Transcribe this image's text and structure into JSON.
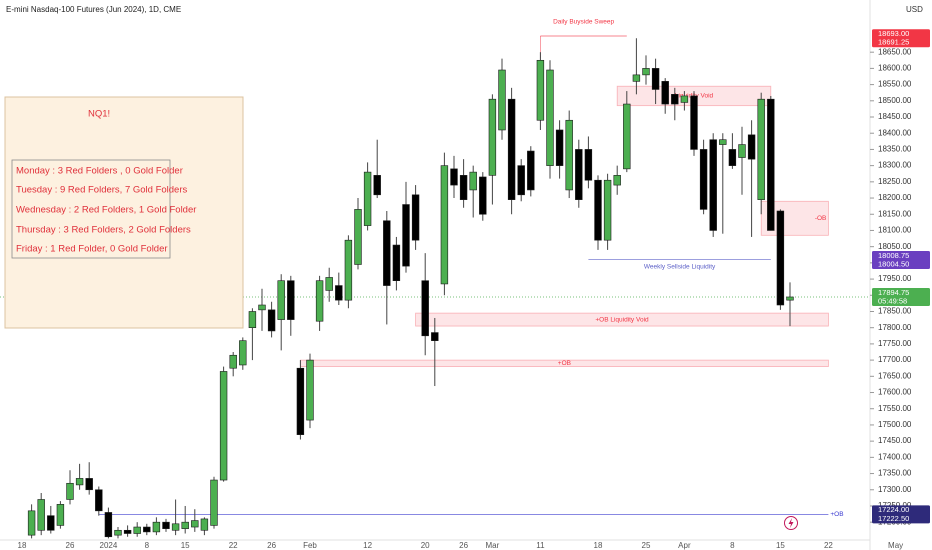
{
  "chart_data": {
    "type": "candlestick",
    "title": "E-mini Nasdaq-100 Futures (Jun 2024), 1D, CME",
    "currency": "USD",
    "categories": [
      "18",
      null,
      null,
      null,
      null,
      "26",
      null,
      null,
      null,
      "2024",
      null,
      null,
      null,
      "8",
      null,
      null,
      null,
      "15",
      null,
      null,
      null,
      null,
      "22",
      null,
      null,
      null,
      "26",
      null,
      null,
      null,
      "Feb",
      null,
      null,
      null,
      null,
      null,
      "12",
      null,
      null,
      null,
      null,
      null,
      "20",
      null,
      null,
      null,
      "26",
      null,
      null,
      "Mar",
      null,
      null,
      null,
      null,
      "11",
      null,
      null,
      null,
      null,
      null,
      "18",
      null,
      null,
      null,
      null,
      "25",
      null,
      null,
      null,
      "Apr",
      null,
      null,
      null,
      null,
      "8",
      null,
      null,
      null,
      null,
      "15",
      null,
      null,
      null,
      null,
      "22",
      null,
      null,
      null,
      null,
      null,
      null,
      "May"
    ],
    "open": [
      null,
      17160,
      17175,
      17220,
      17190,
      17270,
      17315,
      17335,
      17300,
      17230,
      17160,
      17175,
      17165,
      17185,
      17170,
      17200,
      17175,
      17180,
      17185,
      17175,
      17190,
      17330,
      17675,
      17685,
      17800,
      17855,
      17855,
      17825,
      17945,
      17675,
      17515,
      17820,
      17915,
      17930,
      17885,
      17995,
      18115,
      18270,
      18130,
      18055,
      18180,
      18210,
      17945,
      17785,
      17935,
      18290,
      18270,
      18225,
      18265,
      18270,
      18410,
      18505,
      18300,
      18345,
      18440,
      18300,
      18410,
      18225,
      18350,
      18350,
      18255,
      18070,
      18240,
      18290,
      18560,
      18580,
      18600,
      18560,
      18520,
      18495,
      18515,
      18350,
      18380,
      18365,
      18350,
      18325,
      18395,
      18195,
      18505,
      18160,
      17885,
      null,
      null,
      null,
      null,
      null,
      null,
      null,
      null,
      null,
      null,
      null
    ],
    "high": [
      null,
      17255,
      17290,
      17250,
      17265,
      17360,
      17380,
      17385,
      17310,
      17245,
      17185,
      17190,
      17200,
      17195,
      17215,
      17210,
      17270,
      17250,
      17240,
      17215,
      17340,
      17680,
      17725,
      17770,
      17860,
      17920,
      17880,
      17965,
      17960,
      17700,
      17720,
      17960,
      17985,
      17970,
      18085,
      18200,
      18310,
      18380,
      18160,
      18080,
      18250,
      18240,
      18030,
      17830,
      18340,
      18330,
      18320,
      18300,
      18280,
      18520,
      18630,
      18540,
      18320,
      18360,
      18650,
      18625,
      18440,
      18470,
      18380,
      18390,
      18270,
      18275,
      18300,
      18530,
      18693,
      18640,
      18630,
      18570,
      18540,
      18530,
      18530,
      18380,
      18400,
      18400,
      18400,
      18420,
      18440,
      18525,
      18515,
      18165,
      17940,
      null,
      null,
      null,
      null,
      null,
      null,
      null,
      null,
      null,
      null,
      null
    ],
    "low": [
      null,
      17150,
      17160,
      17165,
      17180,
      17255,
      17300,
      17285,
      17220,
      17150,
      17150,
      17155,
      17155,
      17160,
      17160,
      17170,
      17160,
      17165,
      17170,
      17160,
      17180,
      17325,
      17650,
      17670,
      17700,
      17790,
      17770,
      17730,
      17775,
      17455,
      17490,
      17790,
      17880,
      17870,
      17860,
      17980,
      18100,
      18200,
      17810,
      17915,
      17970,
      18040,
      17715,
      17620,
      17900,
      18200,
      18170,
      18140,
      18130,
      18180,
      18380,
      18150,
      18190,
      18205,
      18410,
      18260,
      18260,
      18200,
      18170,
      18230,
      18040,
      18040,
      18210,
      18280,
      18520,
      18550,
      18490,
      18460,
      18440,
      18470,
      18330,
      18150,
      18080,
      18090,
      18290,
      18210,
      18080,
      18150,
      18100,
      17855,
      17805,
      null,
      null,
      null,
      null,
      null,
      null,
      null,
      null,
      null,
      null,
      null
    ],
    "close": [
      null,
      17235,
      17270,
      17175,
      17255,
      17320,
      17335,
      17300,
      17235,
      17155,
      17175,
      17165,
      17185,
      17170,
      17200,
      17180,
      17195,
      17200,
      17205,
      17210,
      17330,
      17665,
      17715,
      17760,
      17850,
      17870,
      17790,
      17945,
      17825,
      17470,
      17700,
      17945,
      17955,
      17885,
      18070,
      18165,
      18280,
      18210,
      17930,
      17945,
      17990,
      18070,
      17775,
      17760,
      18300,
      18240,
      18195,
      18280,
      18150,
      18505,
      18595,
      18195,
      18210,
      18225,
      18625,
      18595,
      18300,
      18440,
      18195,
      18255,
      18070,
      18255,
      18270,
      18490,
      18580,
      18600,
      18535,
      18490,
      18490,
      18515,
      18350,
      18165,
      18100,
      18380,
      18300,
      18365,
      18320,
      18505,
      18100,
      17870,
      17894.75,
      null,
      null,
      null,
      null,
      null,
      null,
      null,
      null,
      null,
      null,
      null
    ],
    "up_color": "#4caf50",
    "down_color": "#000000",
    "wick_color": "#444444",
    "ylim": [
      17145,
      18811
    ],
    "yticks": [
      {
        "value": 18650,
        "label": "18650.00"
      },
      {
        "value": 18600,
        "label": "18600.00"
      },
      {
        "value": 18550,
        "label": "18550.00"
      },
      {
        "value": 18500,
        "label": "18500.00"
      },
      {
        "value": 18450,
        "label": "18450.00"
      },
      {
        "value": 18400,
        "label": "18400.00"
      },
      {
        "value": 18350,
        "label": "18350.00"
      },
      {
        "value": 18300,
        "label": "18300.00"
      },
      {
        "value": 18250,
        "label": "18250.00"
      },
      {
        "value": 18200,
        "label": "18200.00"
      },
      {
        "value": 18150,
        "label": "18150.00"
      },
      {
        "value": 18100,
        "label": "18100.00"
      },
      {
        "value": 18050,
        "label": "18050.00"
      },
      {
        "value": 18000,
        "label": "18000.00"
      },
      {
        "value": 17950,
        "label": "17950.00"
      },
      {
        "value": 17900,
        "label": "17900.00"
      },
      {
        "value": 17850,
        "label": "17850.00"
      },
      {
        "value": 17800,
        "label": "17800.00"
      },
      {
        "value": 17750,
        "label": "17750.00"
      },
      {
        "value": 17700,
        "label": "17700.00"
      },
      {
        "value": 17650,
        "label": "17650.00"
      },
      {
        "value": 17600,
        "label": "17600.00"
      },
      {
        "value": 17550,
        "label": "17550.00"
      },
      {
        "value": 17500,
        "label": "17500.00"
      },
      {
        "value": 17450,
        "label": "17450.00"
      },
      {
        "value": 17400,
        "label": "17400.00"
      },
      {
        "value": 17350,
        "label": "17350.00"
      },
      {
        "value": 17300,
        "label": "17300.00"
      },
      {
        "value": 17250,
        "label": "17250.00"
      },
      {
        "value": 17200,
        "label": "17200.00"
      }
    ],
    "grid": false,
    "price_labels": [
      {
        "value": 18693,
        "label": "18693.00",
        "sub": "18691.25",
        "color": "#f23645"
      },
      {
        "value": 18008.75,
        "label": "18008.75",
        "sub": "18004.50",
        "color": "#6a3fc0"
      },
      {
        "value": 17894.75,
        "label": "17894.75",
        "sub": "05:49:58",
        "color": "#4caf50",
        "line": true
      },
      {
        "value": 17224,
        "label": "17224.00",
        "sub": "17222.50",
        "color": "#2e2a7a"
      }
    ],
    "zones": [
      {
        "label": "Daily Buyside Sweep",
        "kind": "line",
        "level": 18700,
        "start": 54,
        "end": 63,
        "color": "#f23645",
        "label_align": "above"
      },
      {
        "label": "Liquidity Void",
        "kind": "box",
        "high": 18545,
        "low": 18485,
        "start": 62,
        "end": 78,
        "color": "#f23645",
        "label_align": "center"
      },
      {
        "label": "-OB",
        "kind": "box",
        "high": 18190,
        "low": 18085,
        "start": 77,
        "end": 84,
        "color": "#f23645",
        "label_align": "right"
      },
      {
        "label": "Weekly Sellside Liquidity",
        "kind": "line",
        "level": 18010,
        "start": 59,
        "end": 78,
        "color": "#5b5fc7",
        "label_align": "below"
      },
      {
        "label": "+OB Liquidity Void",
        "kind": "box",
        "high": 17845,
        "low": 17805,
        "start": 41,
        "end": 84,
        "color": "#f23645",
        "label_align": "center"
      },
      {
        "label": "+OB",
        "kind": "box",
        "high": 17700,
        "low": 17680,
        "start": 29,
        "end": 84,
        "color": "#f23645",
        "label_align": "center"
      },
      {
        "label": "+OB",
        "kind": "line",
        "level": 17224,
        "start": 8,
        "end": 84,
        "color": "#3a3ad0",
        "label_align": "after"
      }
    ]
  },
  "note": {
    "title": "NQ1!",
    "lines": [
      "Monday : 3 Red Folders , 0 Gold Folder",
      "Tuesday : 9 Red Folders, 7 Gold Folders",
      "Wednesday : 2 Red Folders, 1 Gold Folder",
      "Thursday : 3 Red Folders, 2 Gold Folders",
      "Friday : 1 Red Folder, 0 Gold Folder"
    ]
  }
}
